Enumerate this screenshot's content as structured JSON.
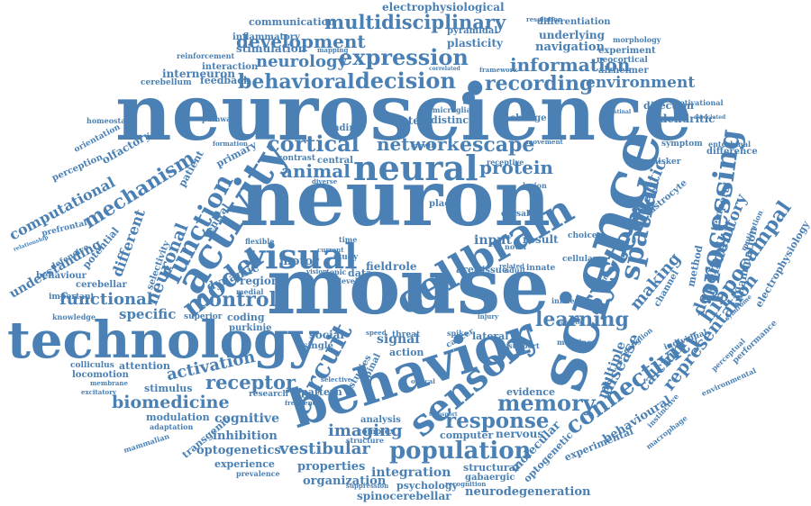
{
  "color": "#4a80b4",
  "words": [
    {
      "text": "neuroscience"
    },
    {
      "text": "neuron"
    },
    {
      "text": "mouse"
    },
    {
      "text": "behavior"
    },
    {
      "text": "science"
    },
    {
      "text": "technology"
    },
    {
      "text": "activity"
    },
    {
      "text": "neural"
    },
    {
      "text": "cellbrain"
    },
    {
      "text": "visual"
    },
    {
      "text": "sensory"
    },
    {
      "text": "processing"
    },
    {
      "text": "system"
    },
    {
      "text": "spatial"
    },
    {
      "text": "circuit"
    },
    {
      "text": "function"
    },
    {
      "text": "model"
    },
    {
      "text": "expression"
    },
    {
      "text": "decision"
    },
    {
      "text": "behavioral"
    },
    {
      "text": "multidisciplinary"
    },
    {
      "text": "development"
    },
    {
      "text": "information"
    },
    {
      "text": "recording"
    },
    {
      "text": "environment"
    },
    {
      "text": "connectivity"
    },
    {
      "text": "population"
    },
    {
      "text": "response"
    },
    {
      "text": "memory"
    },
    {
      "text": "learning"
    },
    {
      "text": "hippocampal"
    },
    {
      "text": "representation"
    },
    {
      "text": "mechanism"
    },
    {
      "text": "computational"
    },
    {
      "text": "neuronal"
    },
    {
      "text": "functional"
    },
    {
      "text": "control"
    },
    {
      "text": "receptor"
    },
    {
      "text": "biomedicine"
    },
    {
      "text": "activation"
    },
    {
      "text": "cortical"
    },
    {
      "text": "network"
    },
    {
      "text": "escape"
    },
    {
      "text": "protein"
    },
    {
      "text": "animal"
    },
    {
      "text": "imaging"
    },
    {
      "text": "synaptic"
    },
    {
      "text": "dependent"
    },
    {
      "text": "inhibitory"
    },
    {
      "text": "disease"
    },
    {
      "text": "making"
    },
    {
      "text": "calcium"
    },
    {
      "text": "multiple"
    },
    {
      "text": "neurology"
    },
    {
      "text": "inflammatory"
    },
    {
      "text": "stimulation"
    },
    {
      "text": "communication"
    },
    {
      "text": "electrophysiological"
    },
    {
      "text": "differentiation"
    },
    {
      "text": "underlying"
    },
    {
      "text": "navigation"
    },
    {
      "text": "plasticity"
    },
    {
      "text": "pyramidal"
    },
    {
      "text": "morphology"
    },
    {
      "text": "experiment"
    },
    {
      "text": "neocortical"
    },
    {
      "text": "resolution"
    },
    {
      "text": "alzheimer"
    },
    {
      "text": "interaction"
    },
    {
      "text": "interneuron"
    },
    {
      "text": "feedback"
    },
    {
      "text": "cerebellum"
    },
    {
      "text": "reinforcement"
    },
    {
      "text": "mapping"
    },
    {
      "text": "framework"
    },
    {
      "text": "correlated"
    },
    {
      "text": "homeostasis"
    },
    {
      "text": "pathway"
    },
    {
      "text": "microglia"
    },
    {
      "text": "distinct"
    },
    {
      "text": "stem"
    },
    {
      "text": "finding"
    },
    {
      "text": "change"
    },
    {
      "text": "intestinal"
    },
    {
      "text": "direction"
    },
    {
      "text": "motivational"
    },
    {
      "text": "dendritic"
    },
    {
      "text": "associated"
    },
    {
      "text": "orientation"
    },
    {
      "text": "perception"
    },
    {
      "text": "olfactory"
    },
    {
      "text": "patient"
    },
    {
      "text": "primary"
    },
    {
      "text": "entorhinal"
    },
    {
      "text": "symptom"
    },
    {
      "text": "whisker"
    },
    {
      "text": "difference"
    },
    {
      "text": "astrocyte"
    },
    {
      "text": "temporal"
    },
    {
      "text": "inflammation"
    },
    {
      "text": "method"
    },
    {
      "text": "channel"
    },
    {
      "text": "electrophysiology"
    },
    {
      "text": "motivation"
    },
    {
      "text": "prefrontal"
    },
    {
      "text": "understanding"
    },
    {
      "text": "defensive"
    },
    {
      "text": "potential"
    },
    {
      "text": "different"
    },
    {
      "text": "relationship"
    },
    {
      "text": "behaviour"
    },
    {
      "text": "cerebellar"
    },
    {
      "text": "important"
    },
    {
      "text": "knowledge"
    },
    {
      "text": "dynamic"
    },
    {
      "text": "region"
    },
    {
      "text": "selectivity"
    },
    {
      "text": "ventral"
    },
    {
      "text": "motor"
    },
    {
      "text": "field"
    },
    {
      "text": "role"
    },
    {
      "text": "input"
    },
    {
      "text": "result"
    },
    {
      "text": "study"
    },
    {
      "text": "data"
    },
    {
      "text": "area"
    },
    {
      "text": "tissue"
    },
    {
      "text": "adult"
    },
    {
      "text": "innate"
    },
    {
      "text": "cellular"
    },
    {
      "text": "choice"
    },
    {
      "text": "specific"
    },
    {
      "text": "coding"
    },
    {
      "text": "superior"
    },
    {
      "text": "purkinje"
    },
    {
      "text": "social"
    },
    {
      "text": "signal"
    },
    {
      "text": "lateral"
    },
    {
      "text": "single"
    },
    {
      "text": "threat"
    },
    {
      "text": "action"
    },
    {
      "text": "cancer"
    },
    {
      "text": "spike"
    },
    {
      "text": "machine"
    },
    {
      "text": "attention"
    },
    {
      "text": "colliculus"
    },
    {
      "text": "locomotion"
    },
    {
      "text": "stimulus"
    },
    {
      "text": "modulation"
    },
    {
      "text": "adaptation"
    },
    {
      "text": "transgenic"
    },
    {
      "text": "cognitive"
    },
    {
      "text": "inhibition"
    },
    {
      "text": "optogenetics"
    },
    {
      "text": "experience"
    },
    {
      "text": "prevalence"
    },
    {
      "text": "vestibular"
    },
    {
      "text": "properties"
    },
    {
      "text": "organization"
    },
    {
      "text": "integration"
    },
    {
      "text": "spinocerebellar"
    },
    {
      "text": "neurodegeneration"
    },
    {
      "text": "psychology"
    },
    {
      "text": "suppression"
    },
    {
      "text": "pattern"
    },
    {
      "text": "research"
    },
    {
      "text": "frequency"
    },
    {
      "text": "analysis"
    },
    {
      "text": "complex"
    },
    {
      "text": "structure"
    },
    {
      "text": "computer"
    },
    {
      "text": "nervous"
    },
    {
      "text": "evidence"
    },
    {
      "text": "molecular"
    },
    {
      "text": "structural"
    },
    {
      "text": "gabaergic"
    },
    {
      "text": "recognition"
    },
    {
      "text": "optogenetic"
    },
    {
      "text": "experimental"
    },
    {
      "text": "behavioural"
    },
    {
      "text": "macrophage"
    },
    {
      "text": "instinctive"
    },
    {
      "text": "environmental"
    },
    {
      "text": "perceptual"
    },
    {
      "text": "performance"
    },
    {
      "text": "syndrome"
    },
    {
      "text": "individual"
    },
    {
      "text": "influence"
    },
    {
      "text": "support"
    },
    {
      "text": "excitatory"
    },
    {
      "text": "membrane"
    },
    {
      "text": "mammalian"
    },
    {
      "text": "contrast"
    },
    {
      "text": "central"
    },
    {
      "text": "diverse"
    },
    {
      "text": "place"
    },
    {
      "text": "level"
    },
    {
      "text": "topic"
    },
    {
      "text": "vision"
    },
    {
      "text": "medial"
    },
    {
      "text": "flexible"
    },
    {
      "text": "current"
    },
    {
      "text": "time"
    },
    {
      "text": "studies"
    },
    {
      "text": "spinal"
    },
    {
      "text": "selective"
    },
    {
      "text": "speed"
    },
    {
      "text": "optical"
    },
    {
      "text": "transport"
    },
    {
      "text": "ganglion"
    },
    {
      "text": "human"
    },
    {
      "text": "genetic"
    },
    {
      "text": "injury"
    },
    {
      "text": "related"
    },
    {
      "text": "novel"
    },
    {
      "text": "dorsal"
    },
    {
      "text": "lesion"
    },
    {
      "text": "receptive"
    },
    {
      "text": "growth"
    },
    {
      "text": "movement"
    },
    {
      "text": "formation"
    }
  ]
}
